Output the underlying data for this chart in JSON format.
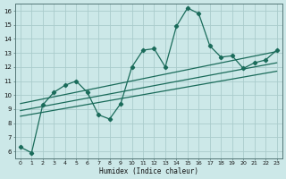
{
  "xlabel": "Humidex (Indice chaleur)",
  "xlim": [
    -0.5,
    23.5
  ],
  "ylim": [
    5.5,
    16.5
  ],
  "xticks": [
    0,
    1,
    2,
    3,
    4,
    5,
    6,
    7,
    8,
    9,
    10,
    11,
    12,
    13,
    14,
    15,
    16,
    17,
    18,
    19,
    20,
    21,
    22,
    23
  ],
  "yticks": [
    6,
    7,
    8,
    9,
    10,
    11,
    12,
    13,
    14,
    15,
    16
  ],
  "background_color": "#cce8e8",
  "grid_color": "#aacccc",
  "line_color": "#1a6b5a",
  "main_line_x": [
    0,
    1,
    2,
    3,
    4,
    5,
    6,
    7,
    8,
    9,
    10,
    11,
    12,
    13,
    14,
    15,
    16,
    17,
    18,
    19,
    20,
    21,
    22,
    23
  ],
  "main_line_y": [
    6.3,
    5.9,
    9.3,
    10.2,
    10.7,
    11.0,
    10.2,
    8.6,
    8.3,
    9.4,
    12.0,
    13.2,
    13.3,
    12.0,
    14.9,
    16.2,
    15.8,
    13.5,
    12.7,
    12.8,
    11.9,
    12.3,
    12.5,
    13.2
  ],
  "regression_lines": [
    {
      "x": [
        0,
        23
      ],
      "y": [
        8.5,
        11.7
      ]
    },
    {
      "x": [
        0,
        23
      ],
      "y": [
        8.9,
        12.3
      ]
    },
    {
      "x": [
        0,
        23
      ],
      "y": [
        9.4,
        13.1
      ]
    }
  ]
}
